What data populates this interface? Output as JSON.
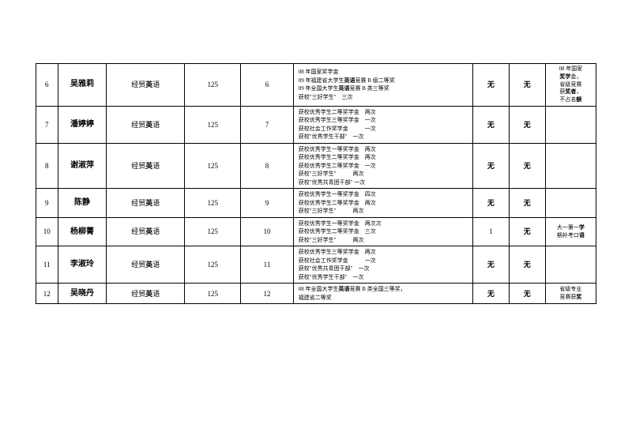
{
  "rows": [
    {
      "num": "6",
      "name": "吴雅莉",
      "major": "经贸英语",
      "total": "125",
      "rank": "6",
      "awards": "08 年国家奖学金\n09 年福建省大学生英语竞赛 B 级二等奖\n09 年全国大学生英语竞赛 B 类三等奖\n获校\"三好学生\"　三次",
      "fail": "无",
      "disc": "无",
      "remark": "08 年国家\n奖学金，\n省级竞赛\n获奖者，\n不占名额"
    },
    {
      "num": "7",
      "name": "潘婷婷",
      "major": "经贸英语",
      "total": "125",
      "rank": "7",
      "awards": "获校优秀学生二等奖学金　两次\n获校优秀学生三等奖学金　一次\n获校社会工作奖学金　　　一次\n获校\"优秀学生干部\"　一次",
      "fail": "无",
      "disc": "无",
      "remark": ""
    },
    {
      "num": "8",
      "name": "谢淑萍",
      "major": "经贸英语",
      "total": "125",
      "rank": "8",
      "awards": "获校优秀学生一等奖学金　两次\n获校优秀学生二等奖学金　两次\n获校优秀学生二等奖学金　一次\n获校\"三好学生\"　　　两次\n获校\"优秀共青团干部\" 一次",
      "fail": "无",
      "disc": "无",
      "remark": ""
    },
    {
      "num": "9",
      "name": "陈静",
      "major": "经贸英语",
      "total": "125",
      "rank": "9",
      "awards": "获校优秀学生一等奖学金　四次\n获校优秀学生二等奖学金　两次\n获校\"三好学生\"　　　两次",
      "fail": "无",
      "disc": "无",
      "remark": ""
    },
    {
      "num": "10",
      "name": "杨柳菁",
      "major": "经贸英语",
      "total": "125",
      "rank": "10",
      "awards": "获校优秀学生一等奖学金　两次次\n获校优秀学生二等奖学金　三次\n获校\"三好学生\"　　　两次",
      "fail": "1",
      "disc": "无",
      "remark": "大一第一学\n期补考口语"
    },
    {
      "num": "11",
      "name": "李淑玲",
      "major": "经贸英语",
      "total": "125",
      "rank": "11",
      "awards": "获校优秀学生三等奖学金　两次\n获校社会工作奖学金　　　一次\n获校\"优秀共青团干部\"　一次\n获校\"优秀学生干部\"　一次",
      "fail": "无",
      "disc": "无",
      "remark": ""
    },
    {
      "num": "12",
      "name": "吴晓丹",
      "major": "经贸英语",
      "total": "125",
      "rank": "12",
      "awards": "08 年全国大学生英语竞赛 B 类全国三等奖，\n福建省二等奖",
      "fail": "无",
      "disc": "无",
      "remark": "省级专业\n竞赛获奖"
    }
  ],
  "nameBold": [
    "吴雅莉",
    "潘婷婷",
    "谢淑萍",
    "陈静",
    "杨柳菁",
    "李淑玲",
    "吴晓丹"
  ],
  "majorPlain": "经贸",
  "majorBold": "英",
  "majorTail": "语"
}
